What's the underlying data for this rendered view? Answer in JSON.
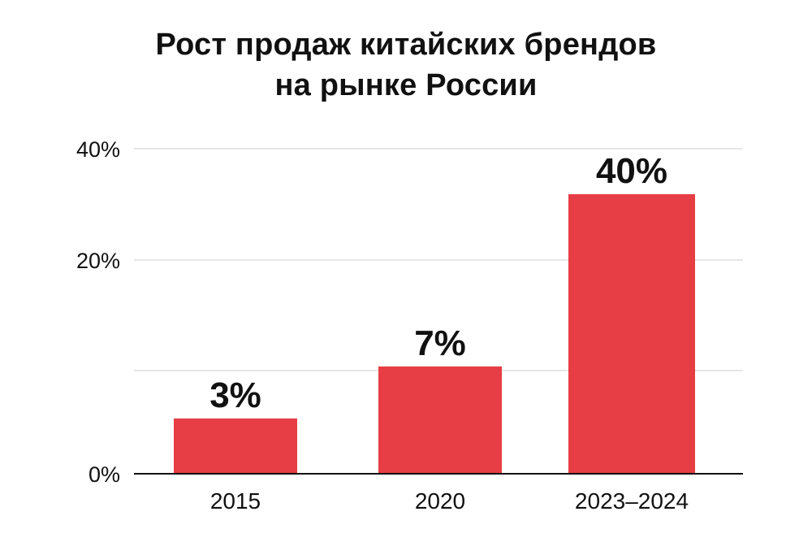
{
  "chart_data": {
    "type": "bar",
    "title": "Рост продаж китайских брендов на рынке России",
    "title_lines": [
      "Рост продаж китайских брендов",
      "на рынке России"
    ],
    "categories": [
      "2015",
      "2020",
      "2023–2024"
    ],
    "values": [
      3,
      7,
      40
    ],
    "data_labels": [
      "3%",
      "7%",
      "40%"
    ],
    "xlabel": "",
    "ylabel": "",
    "ylim": [
      0,
      40
    ],
    "y_tick_values": [
      0,
      20,
      40
    ],
    "y_tick_labels": [
      "0%",
      "20%",
      "40%"
    ],
    "grid": true,
    "legend": "none",
    "bar_color": "#e63e44",
    "grid_color": "#dddddd",
    "axis_color": "#111111"
  }
}
